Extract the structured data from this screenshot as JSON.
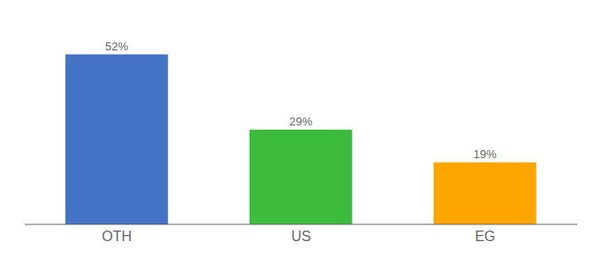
{
  "chart_data": {
    "type": "bar",
    "categories": [
      "OTH",
      "US",
      "EG"
    ],
    "values": [
      52,
      29,
      19
    ],
    "value_labels": [
      "52%",
      "29%",
      "19%"
    ],
    "colors": [
      "#4472C4",
      "#3DBB3D",
      "#FFA500"
    ],
    "ylim": [
      0,
      60
    ],
    "data_labels": true,
    "tick_labels": "x",
    "grid": false
  }
}
